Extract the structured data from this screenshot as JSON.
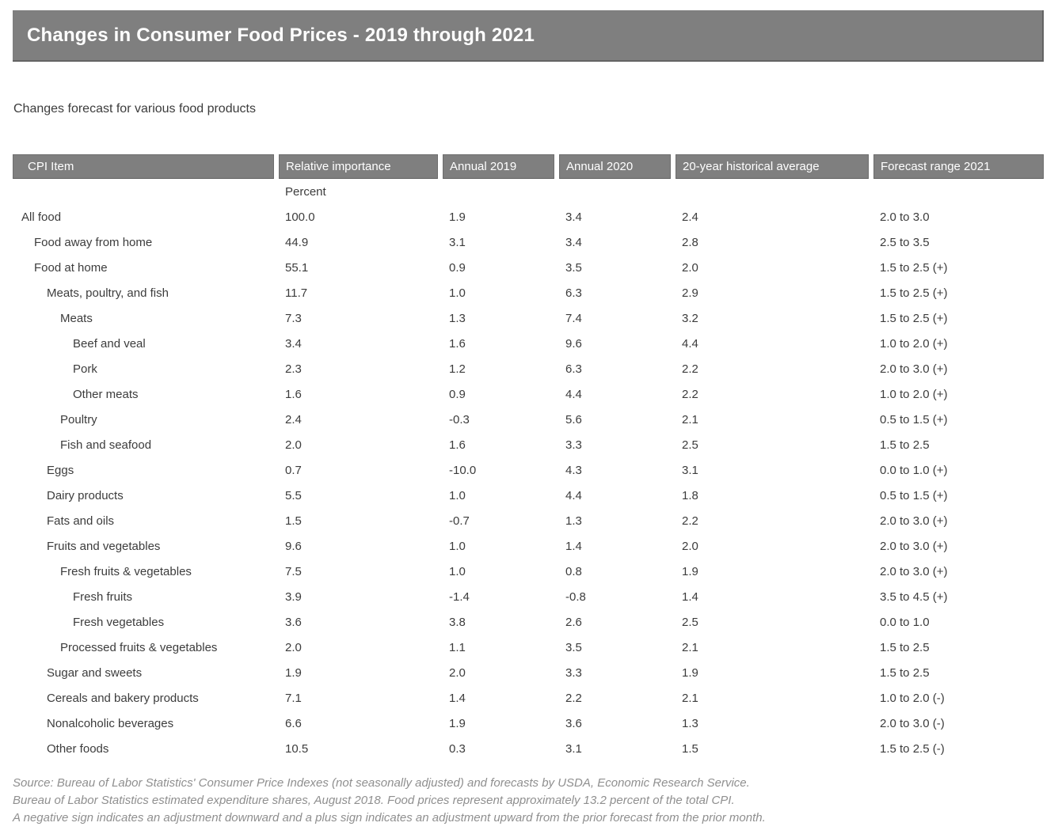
{
  "title": "Changes in Consumer Food Prices - 2019 through 2021",
  "subtitle": "Changes forecast for various food products",
  "colors": {
    "header_bar": "#7f7f7f",
    "header_text": "#ffffff",
    "body_text": "#3c3c3c",
    "footnote_text": "#8f8f8f"
  },
  "table": {
    "columns": [
      "CPI Item",
      "Relative importance",
      "Annual 2019",
      "Annual 2020",
      "20-year historical average",
      "Forecast range 2021"
    ],
    "unit_label": "Percent",
    "rows": [
      {
        "item": "All food",
        "level": 0,
        "relative_importance": "100.0",
        "annual_2019": "1.9",
        "annual_2020": "3.4",
        "hist_avg_20yr": "2.4",
        "forecast_2021": "2.0 to 3.0"
      },
      {
        "item": "Food away from home",
        "level": 1,
        "relative_importance": "44.9",
        "annual_2019": "3.1",
        "annual_2020": "3.4",
        "hist_avg_20yr": "2.8",
        "forecast_2021": "2.5 to 3.5"
      },
      {
        "item": "Food at home",
        "level": 1,
        "relative_importance": "55.1",
        "annual_2019": "0.9",
        "annual_2020": "3.5",
        "hist_avg_20yr": "2.0",
        "forecast_2021": "1.5 to 2.5 (+)"
      },
      {
        "item": "Meats, poultry, and fish",
        "level": 2,
        "relative_importance": "11.7",
        "annual_2019": "1.0",
        "annual_2020": "6.3",
        "hist_avg_20yr": "2.9",
        "forecast_2021": "1.5 to 2.5 (+)"
      },
      {
        "item": "Meats",
        "level": 3,
        "relative_importance": "7.3",
        "annual_2019": "1.3",
        "annual_2020": "7.4",
        "hist_avg_20yr": "3.2",
        "forecast_2021": "1.5 to 2.5 (+)"
      },
      {
        "item": "Beef and veal",
        "level": 4,
        "relative_importance": "3.4",
        "annual_2019": "1.6",
        "annual_2020": "9.6",
        "hist_avg_20yr": "4.4",
        "forecast_2021": "1.0 to 2.0 (+)"
      },
      {
        "item": "Pork",
        "level": 4,
        "relative_importance": "2.3",
        "annual_2019": "1.2",
        "annual_2020": "6.3",
        "hist_avg_20yr": "2.2",
        "forecast_2021": "2.0 to 3.0 (+)"
      },
      {
        "item": "Other meats",
        "level": 4,
        "relative_importance": "1.6",
        "annual_2019": "0.9",
        "annual_2020": "4.4",
        "hist_avg_20yr": "2.2",
        "forecast_2021": "1.0 to 2.0 (+)"
      },
      {
        "item": "Poultry",
        "level": 3,
        "relative_importance": "2.4",
        "annual_2019": "-0.3",
        "annual_2020": "5.6",
        "hist_avg_20yr": "2.1",
        "forecast_2021": "0.5 to 1.5 (+)"
      },
      {
        "item": "Fish and seafood",
        "level": 3,
        "relative_importance": "2.0",
        "annual_2019": "1.6",
        "annual_2020": "3.3",
        "hist_avg_20yr": "2.5",
        "forecast_2021": "1.5 to 2.5"
      },
      {
        "item": "Eggs",
        "level": 2,
        "relative_importance": "0.7",
        "annual_2019": "-10.0",
        "annual_2020": "4.3",
        "hist_avg_20yr": "3.1",
        "forecast_2021": "0.0 to 1.0 (+)"
      },
      {
        "item": "Dairy products",
        "level": 2,
        "relative_importance": "5.5",
        "annual_2019": "1.0",
        "annual_2020": "4.4",
        "hist_avg_20yr": "1.8",
        "forecast_2021": "0.5 to 1.5 (+)"
      },
      {
        "item": "Fats and oils",
        "level": 2,
        "relative_importance": "1.5",
        "annual_2019": "-0.7",
        "annual_2020": "1.3",
        "hist_avg_20yr": "2.2",
        "forecast_2021": "2.0 to 3.0 (+)"
      },
      {
        "item": "Fruits and vegetables",
        "level": 2,
        "relative_importance": "9.6",
        "annual_2019": "1.0",
        "annual_2020": "1.4",
        "hist_avg_20yr": "2.0",
        "forecast_2021": "2.0 to 3.0 (+)"
      },
      {
        "item": "Fresh fruits & vegetables",
        "level": 3,
        "relative_importance": "7.5",
        "annual_2019": "1.0",
        "annual_2020": "0.8",
        "hist_avg_20yr": "1.9",
        "forecast_2021": "2.0 to 3.0 (+)"
      },
      {
        "item": "Fresh fruits",
        "level": 4,
        "relative_importance": "3.9",
        "annual_2019": "-1.4",
        "annual_2020": "-0.8",
        "hist_avg_20yr": "1.4",
        "forecast_2021": "3.5 to 4.5 (+)"
      },
      {
        "item": "Fresh vegetables",
        "level": 4,
        "relative_importance": "3.6",
        "annual_2019": "3.8",
        "annual_2020": "2.6",
        "hist_avg_20yr": "2.5",
        "forecast_2021": "0.0 to 1.0"
      },
      {
        "item": "Processed fruits & vegetables",
        "level": 3,
        "relative_importance": "2.0",
        "annual_2019": "1.1",
        "annual_2020": "3.5",
        "hist_avg_20yr": "2.1",
        "forecast_2021": "1.5 to 2.5"
      },
      {
        "item": "Sugar and sweets",
        "level": 2,
        "relative_importance": "1.9",
        "annual_2019": "2.0",
        "annual_2020": "3.3",
        "hist_avg_20yr": "1.9",
        "forecast_2021": "1.5 to 2.5"
      },
      {
        "item": "Cereals and bakery products",
        "level": 2,
        "relative_importance": "7.1",
        "annual_2019": "1.4",
        "annual_2020": "2.2",
        "hist_avg_20yr": "2.1",
        "forecast_2021": "1.0 to 2.0 (-)"
      },
      {
        "item": "Nonalcoholic beverages",
        "level": 2,
        "relative_importance": "6.6",
        "annual_2019": "1.9",
        "annual_2020": "3.6",
        "hist_avg_20yr": "1.3",
        "forecast_2021": "2.0 to 3.0 (-)"
      },
      {
        "item": "Other foods",
        "level": 2,
        "relative_importance": "10.5",
        "annual_2019": "0.3",
        "annual_2020": "3.1",
        "hist_avg_20yr": "1.5",
        "forecast_2021": "1.5 to 2.5 (-)"
      }
    ]
  },
  "footnotes": [
    "Source: Bureau of Labor Statistics' Consumer Price Indexes (not seasonally adjusted) and forecasts by USDA, Economic Research Service.",
    "Bureau of Labor Statistics estimated expenditure shares, August 2018. Food prices represent approximately 13.2 percent of the total CPI.",
    "A negative sign indicates an adjustment downward and a plus sign indicates an adjustment upward from the prior forecast from the prior month."
  ]
}
